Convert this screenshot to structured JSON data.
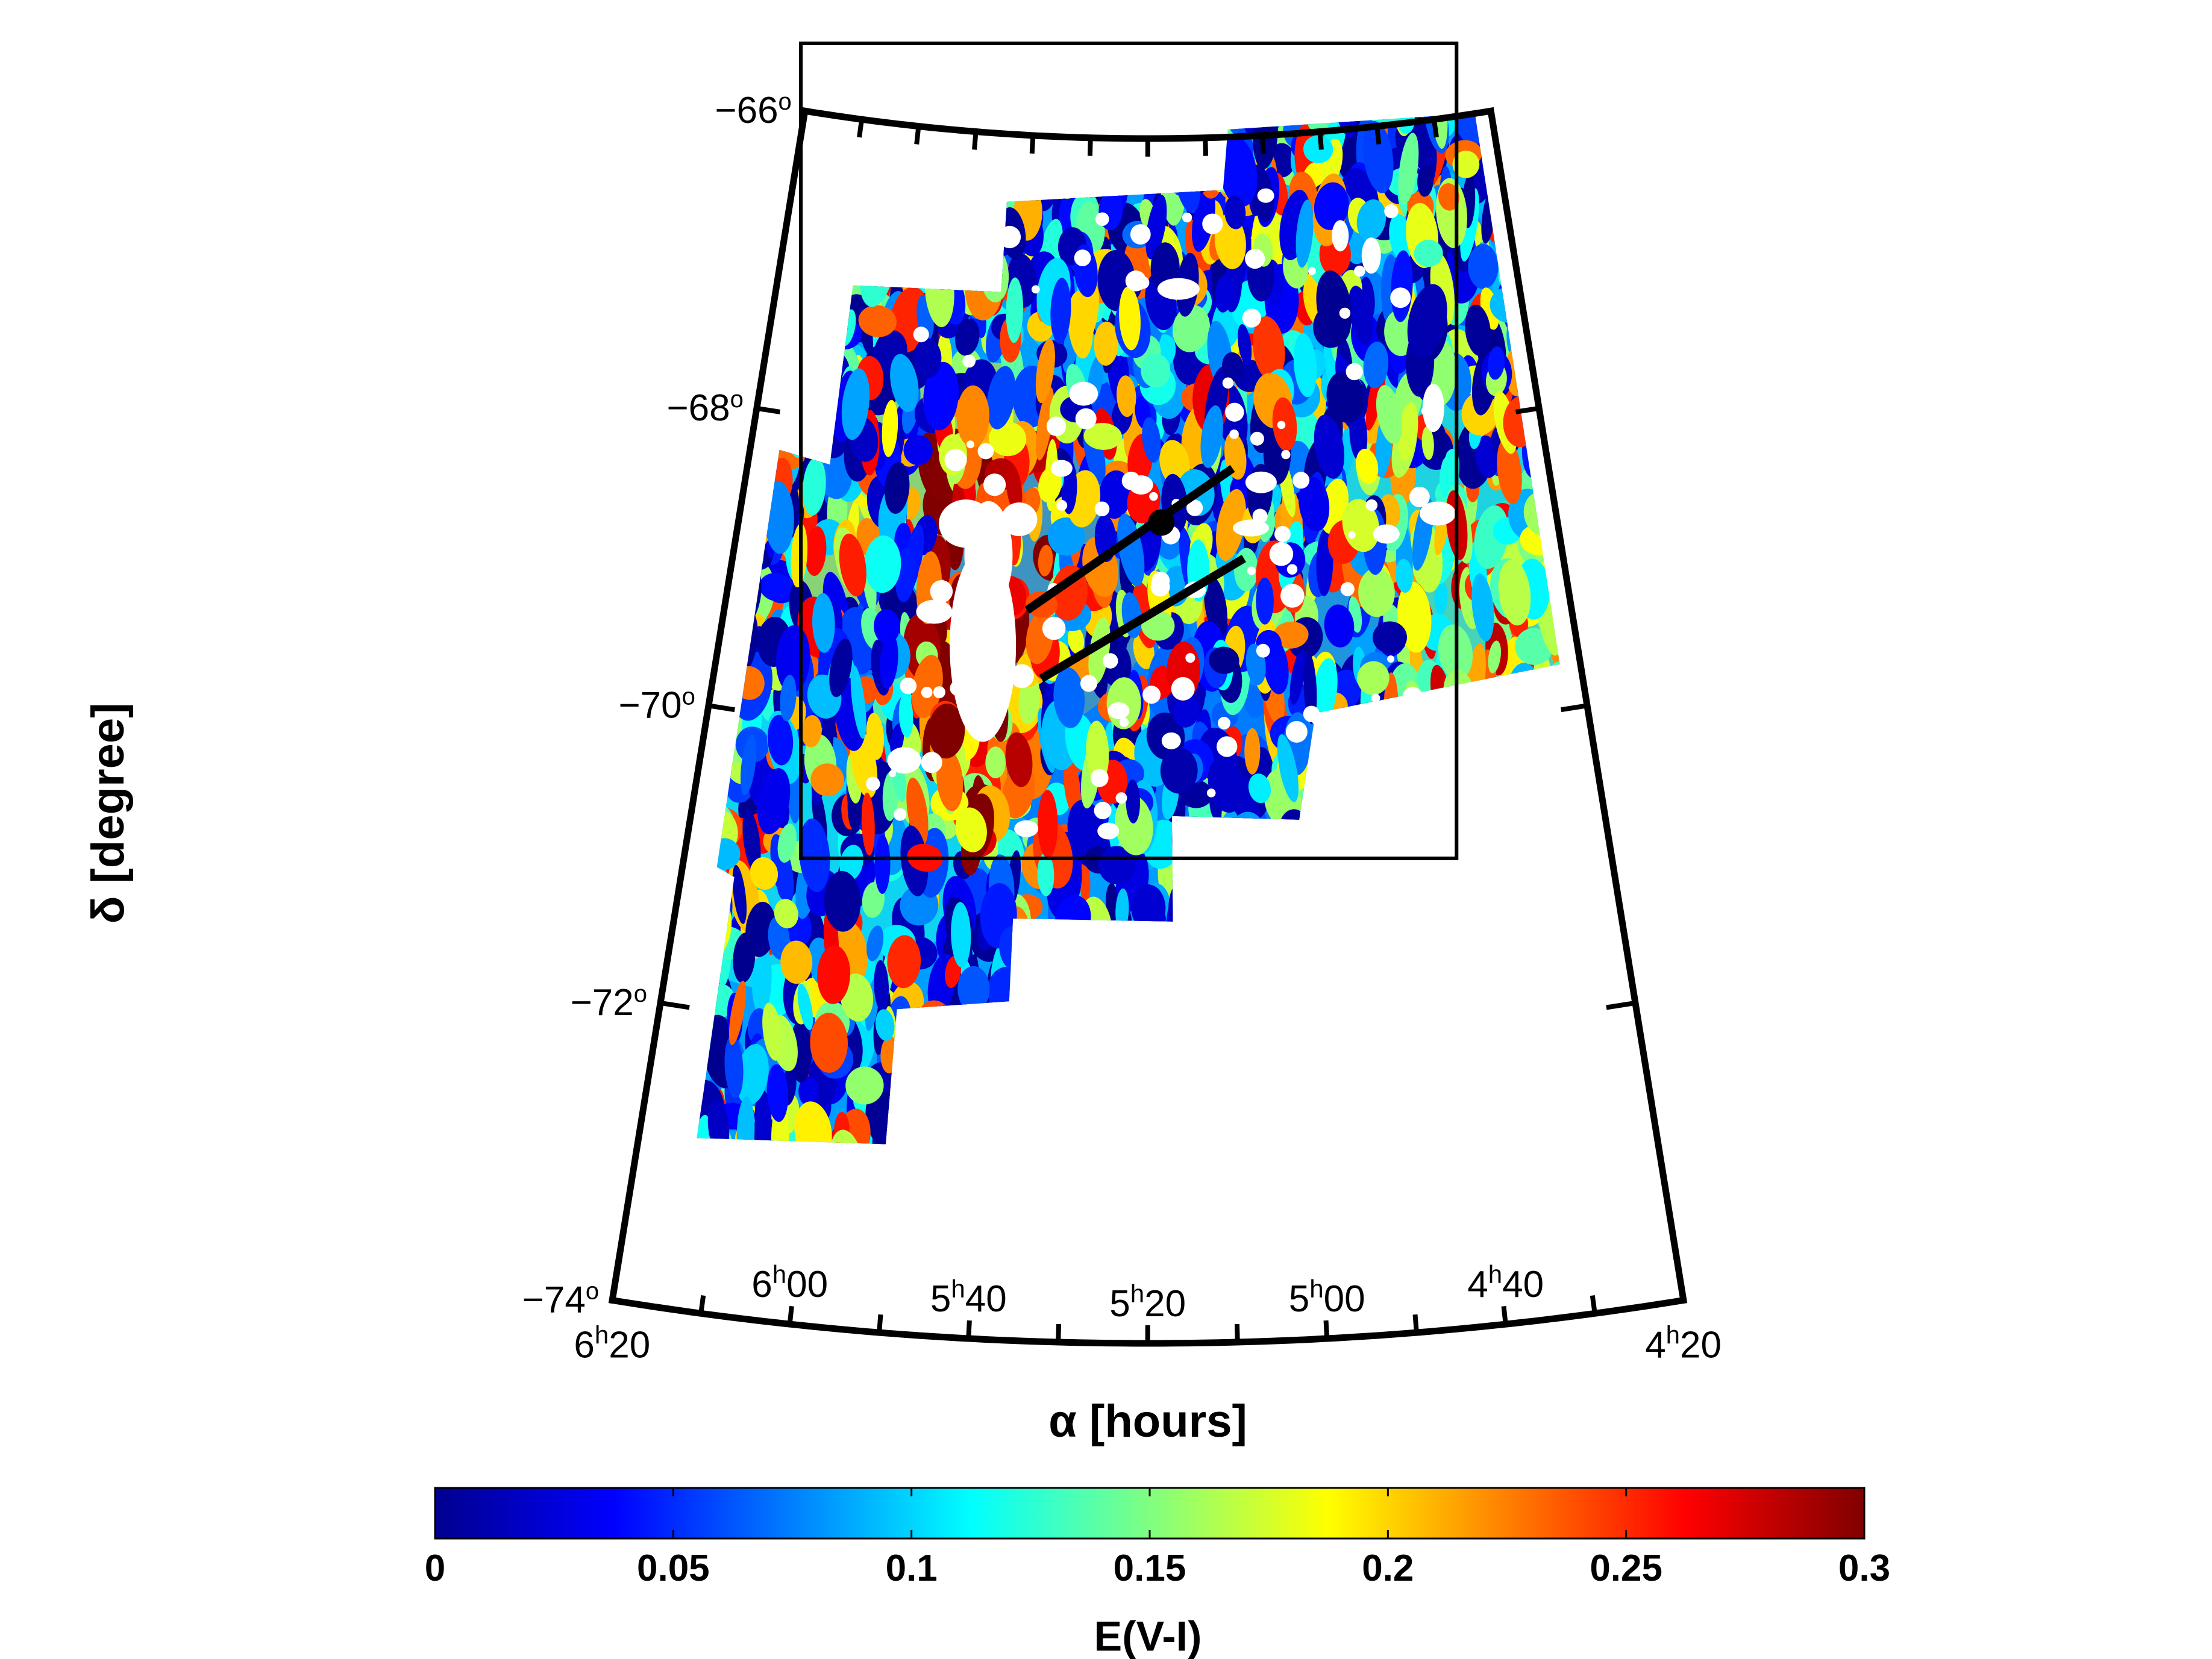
{
  "chart_data": {
    "type": "heatmap",
    "projection": "polar sky projection (curved RA/Dec grid)",
    "xlabel": "α [hours]",
    "ylabel": "δ [degree]",
    "x_ticks": [
      {
        "h": "6",
        "m": "20"
      },
      {
        "h": "6",
        "m": "00"
      },
      {
        "h": "5",
        "m": "40"
      },
      {
        "h": "5",
        "m": "20"
      },
      {
        "h": "5",
        "m": "00"
      },
      {
        "h": "4",
        "m": "40"
      },
      {
        "h": "4",
        "m": "20"
      }
    ],
    "x_range_hours": [
      6.333,
      4.333
    ],
    "y_ticks": [
      {
        "v": "−66",
        "u": "o"
      },
      {
        "v": "−68",
        "u": "o"
      },
      {
        "v": "−70",
        "u": "o"
      },
      {
        "v": "−72",
        "u": "o"
      },
      {
        "v": "−74",
        "u": "o"
      }
    ],
    "y_range_deg": [
      -74,
      -66
    ],
    "colorbar": {
      "colormap": "jet",
      "title": "E(V-I)",
      "range": [
        0,
        0.3
      ],
      "ticks": [
        "0",
        "0.05",
        "0.1",
        "0.15",
        "0.2",
        "0.25",
        "0.3"
      ]
    },
    "overlays": {
      "box_ra_hours": [
        6.18,
        4.58
      ],
      "box_dec_deg": [
        -71.0,
        -66.5
      ],
      "lines": [
        {
          "ra_hours": [
            5.62,
            5.12
          ],
          "dec_deg": [
            -69.15,
            -68.2
          ]
        },
        {
          "ra_hours": [
            5.58,
            5.1
          ],
          "dec_deg": [
            -69.6,
            -68.8
          ]
        }
      ],
      "masked_regions": "white (no data)"
    },
    "grid": false
  },
  "colors": {
    "background": "#ffffff",
    "frame": "#000000",
    "jet_low": "#00008f",
    "jet_mid": "#80ff80",
    "jet_high": "#800000"
  }
}
